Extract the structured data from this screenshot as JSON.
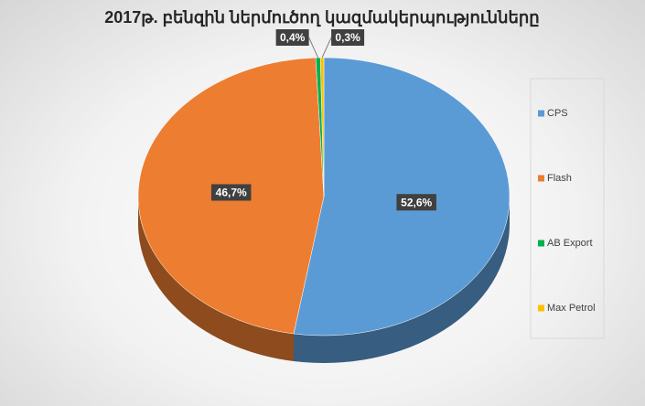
{
  "chart_data": {
    "type": "pie3d",
    "title": "2017թ. բենզին ներմուծող կազմակերպությունները",
    "categories": [
      "CPS",
      "Flash",
      "AB Export",
      "Max Petrol"
    ],
    "values": [
      52.6,
      46.7,
      0.4,
      0.3
    ],
    "value_labels": [
      "52,6%",
      "46,7%",
      "0,4%",
      "0,3%"
    ],
    "colors": [
      "#5b9bd5",
      "#ed7d31",
      "#00b050",
      "#ffc000"
    ],
    "legend": "right"
  }
}
